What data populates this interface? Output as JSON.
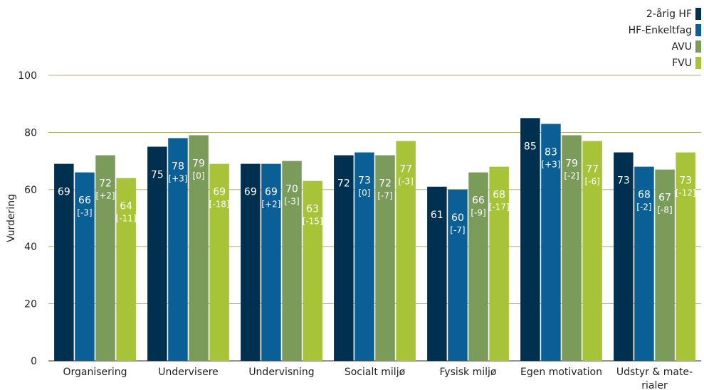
{
  "chart_data": {
    "type": "bar",
    "title": "",
    "xlabel": "",
    "ylabel": "Vurdering",
    "ylim": [
      0,
      100
    ],
    "yticks": [
      0,
      20,
      40,
      60,
      80,
      100
    ],
    "grid": true,
    "legend_position": "top-right",
    "categories": [
      [
        "Organisering"
      ],
      [
        "Undervisere"
      ],
      [
        "Undervisning"
      ],
      [
        "Socialt miljø"
      ],
      [
        "Fysisk miljø"
      ],
      [
        "Egen motivation"
      ],
      [
        "Udstyr & mate-",
        "rialer"
      ]
    ],
    "series": [
      {
        "name": "2-årig HF",
        "color": "#003050",
        "values": [
          69,
          75,
          69,
          72,
          61,
          85,
          73
        ],
        "deltas": [
          "",
          "",
          "",
          "",
          "",
          "",
          ""
        ]
      },
      {
        "name": "HF-Enkeltfag",
        "color": "#0a6096",
        "values": [
          66,
          78,
          69,
          73,
          60,
          83,
          68
        ],
        "deltas": [
          "[-3]",
          "[+3]",
          "[+2]",
          "[0]",
          "[-7]",
          "[+3]",
          "[-2]"
        ]
      },
      {
        "name": "AVU",
        "color": "#7b9b5a",
        "values": [
          72,
          79,
          70,
          72,
          66,
          79,
          67
        ],
        "deltas": [
          "[+2]",
          "[0]",
          "[-3]",
          "[-7]",
          "[-9]",
          "[-2]",
          "[-8]"
        ]
      },
      {
        "name": "FVU",
        "color": "#a7c337",
        "values": [
          64,
          69,
          63,
          77,
          68,
          77,
          73
        ],
        "deltas": [
          "[-11]",
          "[-18]",
          "[-15]",
          "[-3]",
          "[-17]",
          "[-6]",
          "[-12]"
        ]
      }
    ]
  }
}
